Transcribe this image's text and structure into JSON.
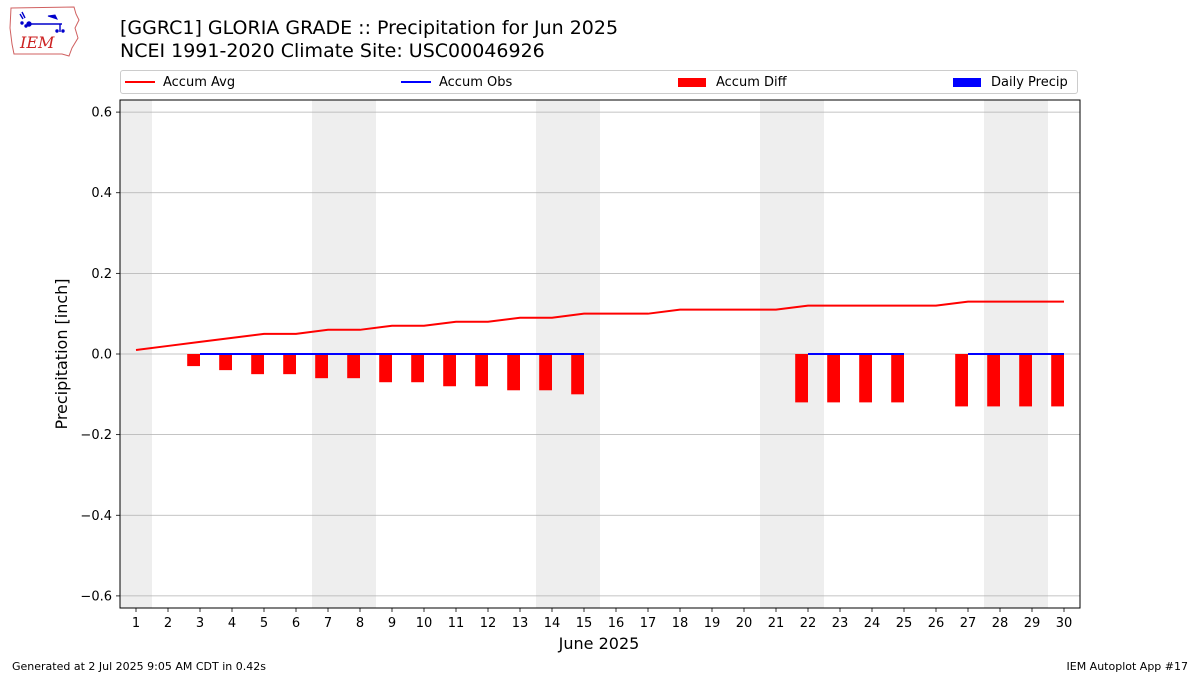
{
  "header": {
    "title_line1": "[GGRC1] GLORIA GRADE :: Precipitation for Jun 2025",
    "title_line2": "NCEI 1991-2020 Climate Site: USC00046926"
  },
  "logo": {
    "text": "IEM",
    "icon": "iem-iowa-logo"
  },
  "legend": {
    "items": [
      {
        "label": "Accum Avg",
        "kind": "line",
        "color": "#ff0000"
      },
      {
        "label": "Accum Obs",
        "kind": "line",
        "color": "#0000ff"
      },
      {
        "label": "Accum Diff",
        "kind": "bar",
        "color": "#ff0000"
      },
      {
        "label": "Daily Precip",
        "kind": "bar",
        "color": "#0000ff"
      }
    ]
  },
  "footer": {
    "left": "Generated at 2 Jul 2025 9:05 AM CDT in 0.42s",
    "right": "IEM Autoplot App #17"
  },
  "chart_data": {
    "type": "bar",
    "xlabel": "June 2025",
    "ylabel": "Precipitation [inch]",
    "xlim": [
      0.5,
      30.5
    ],
    "ylim": [
      -0.63,
      0.63
    ],
    "grid": true,
    "legend_placement": "top",
    "x": [
      1,
      2,
      3,
      4,
      5,
      6,
      7,
      8,
      9,
      10,
      11,
      12,
      13,
      14,
      15,
      16,
      17,
      18,
      19,
      20,
      21,
      22,
      23,
      24,
      25,
      26,
      27,
      28,
      29,
      30
    ],
    "y_ticks": [
      -0.6,
      -0.4,
      -0.2,
      0.0,
      0.2,
      0.4,
      0.6
    ],
    "weekend_shading_days": [
      1,
      7,
      8,
      14,
      15,
      21,
      22,
      28,
      29
    ],
    "shading_color": "#eeeeee",
    "series": [
      {
        "name": "Accum Avg",
        "kind": "line",
        "color": "#ff0000",
        "x": [
          1,
          2,
          3,
          4,
          5,
          6,
          7,
          8,
          9,
          10,
          11,
          12,
          13,
          14,
          15,
          16,
          17,
          18,
          19,
          20,
          21,
          22,
          23,
          24,
          25,
          26,
          27,
          28,
          29,
          30
        ],
        "values": [
          0.01,
          0.02,
          0.03,
          0.04,
          0.05,
          0.05,
          0.06,
          0.06,
          0.07,
          0.07,
          0.08,
          0.08,
          0.09,
          0.09,
          0.1,
          0.1,
          0.1,
          0.11,
          0.11,
          0.11,
          0.11,
          0.12,
          0.12,
          0.12,
          0.12,
          0.12,
          0.13,
          0.13,
          0.13,
          0.13
        ]
      },
      {
        "name": "Accum Obs",
        "kind": "line",
        "color": "#0000ff",
        "segments": [
          {
            "x": [
              3,
              4,
              5,
              6,
              7,
              8,
              9,
              10,
              11,
              12,
              13,
              14,
              15
            ],
            "values": [
              0,
              0,
              0,
              0,
              0,
              0,
              0,
              0,
              0,
              0,
              0,
              0,
              0
            ]
          },
          {
            "x": [
              22,
              23,
              24,
              25
            ],
            "values": [
              0,
              0,
              0,
              0
            ]
          },
          {
            "x": [
              27,
              28,
              29,
              30
            ],
            "values": [
              0,
              0,
              0,
              0
            ]
          }
        ]
      },
      {
        "name": "Accum Diff",
        "kind": "bar",
        "color": "#ff0000",
        "x": [
          3,
          4,
          5,
          6,
          7,
          8,
          9,
          10,
          11,
          12,
          13,
          14,
          15,
          22,
          23,
          24,
          25,
          27,
          28,
          29,
          30
        ],
        "values": [
          -0.03,
          -0.04,
          -0.05,
          -0.05,
          -0.06,
          -0.06,
          -0.07,
          -0.07,
          -0.08,
          -0.08,
          -0.09,
          -0.09,
          -0.1,
          -0.12,
          -0.12,
          -0.12,
          -0.12,
          -0.13,
          -0.13,
          -0.13,
          -0.13
        ]
      },
      {
        "name": "Daily Precip",
        "kind": "bar",
        "color": "#0000ff",
        "x": [
          3,
          4,
          5,
          6,
          7,
          8,
          9,
          10,
          11,
          12,
          13,
          14,
          15,
          22,
          23,
          24,
          25,
          27,
          28,
          29,
          30
        ],
        "values": [
          0,
          0,
          0,
          0,
          0,
          0,
          0,
          0,
          0,
          0,
          0,
          0,
          0,
          0,
          0,
          0,
          0,
          0,
          0,
          0,
          0
        ]
      }
    ]
  }
}
